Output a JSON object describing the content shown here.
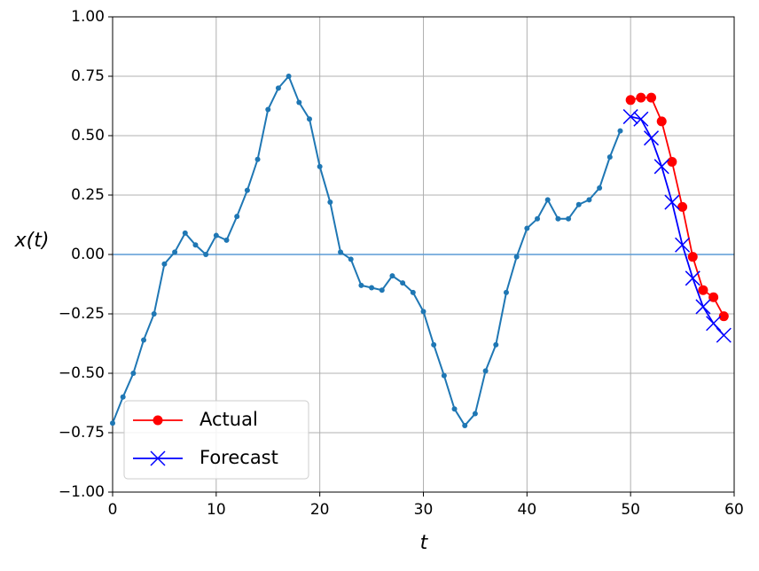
{
  "chart_data": {
    "type": "line",
    "xlabel": "t",
    "ylabel": "x(t)",
    "xlim": [
      0,
      60
    ],
    "xticks": [
      0,
      10,
      20,
      30,
      40,
      50,
      60
    ],
    "ylim": [
      -1,
      1
    ],
    "yticks": [
      {
        "value": -1,
        "label": "−1.00"
      },
      {
        "value": -0.75,
        "label": "−0.75"
      },
      {
        "value": -0.5,
        "label": "−0.50"
      },
      {
        "value": -0.25,
        "label": "−0.25"
      },
      {
        "value": 0,
        "label": "0.00"
      },
      {
        "value": 0.25,
        "label": "0.25"
      },
      {
        "value": 0.5,
        "label": "0.50"
      },
      {
        "value": 0.75,
        "label": "0.75"
      },
      {
        "value": 1,
        "label": "1.00"
      }
    ],
    "grid": true,
    "hline": 0,
    "hline_color": "#5b9bd5",
    "legend": "lower left",
    "series": [
      {
        "color": "#1f77b4",
        "marker": "dot",
        "x": [
          0,
          1,
          2,
          3,
          4,
          5,
          6,
          7,
          8,
          9,
          10,
          11,
          12,
          13,
          14,
          15,
          16,
          17,
          18,
          19,
          20,
          21,
          22,
          23,
          24,
          25,
          26,
          27,
          28,
          29,
          30,
          31,
          32,
          33,
          34,
          35,
          36,
          37,
          38,
          39,
          40,
          41,
          42,
          43,
          44,
          45,
          46,
          47,
          48,
          49
        ],
        "values": [
          -0.71,
          -0.6,
          -0.5,
          -0.36,
          -0.25,
          -0.04,
          0.01,
          0.09,
          0.04,
          0.0,
          0.08,
          0.06,
          0.16,
          0.27,
          0.4,
          0.61,
          0.7,
          0.75,
          0.64,
          0.57,
          0.37,
          0.22,
          0.01,
          -0.02,
          -0.13,
          -0.14,
          -0.15,
          -0.09,
          -0.12,
          -0.16,
          -0.24,
          -0.38,
          -0.51,
          -0.65,
          -0.72,
          -0.67,
          -0.49,
          -0.38,
          -0.16,
          -0.01,
          0.11,
          0.15,
          0.23,
          0.15,
          0.15,
          0.21,
          0.23,
          0.28,
          0.41,
          0.52
        ]
      },
      {
        "name": "Actual",
        "color": "#ff0000",
        "marker": "circle",
        "x": [
          50,
          51,
          52,
          53,
          54,
          55,
          56,
          57,
          58,
          59
        ],
        "values": [
          0.65,
          0.66,
          0.66,
          0.56,
          0.39,
          0.2,
          -0.01,
          -0.15,
          -0.18,
          -0.26
        ]
      },
      {
        "name": "Forecast",
        "color": "#0000ff",
        "marker": "x",
        "x": [
          50,
          51,
          52,
          53,
          54,
          55,
          56,
          57,
          58,
          59
        ],
        "values": [
          0.58,
          0.57,
          0.49,
          0.37,
          0.22,
          0.04,
          -0.1,
          -0.22,
          -0.29,
          -0.34
        ]
      }
    ]
  }
}
